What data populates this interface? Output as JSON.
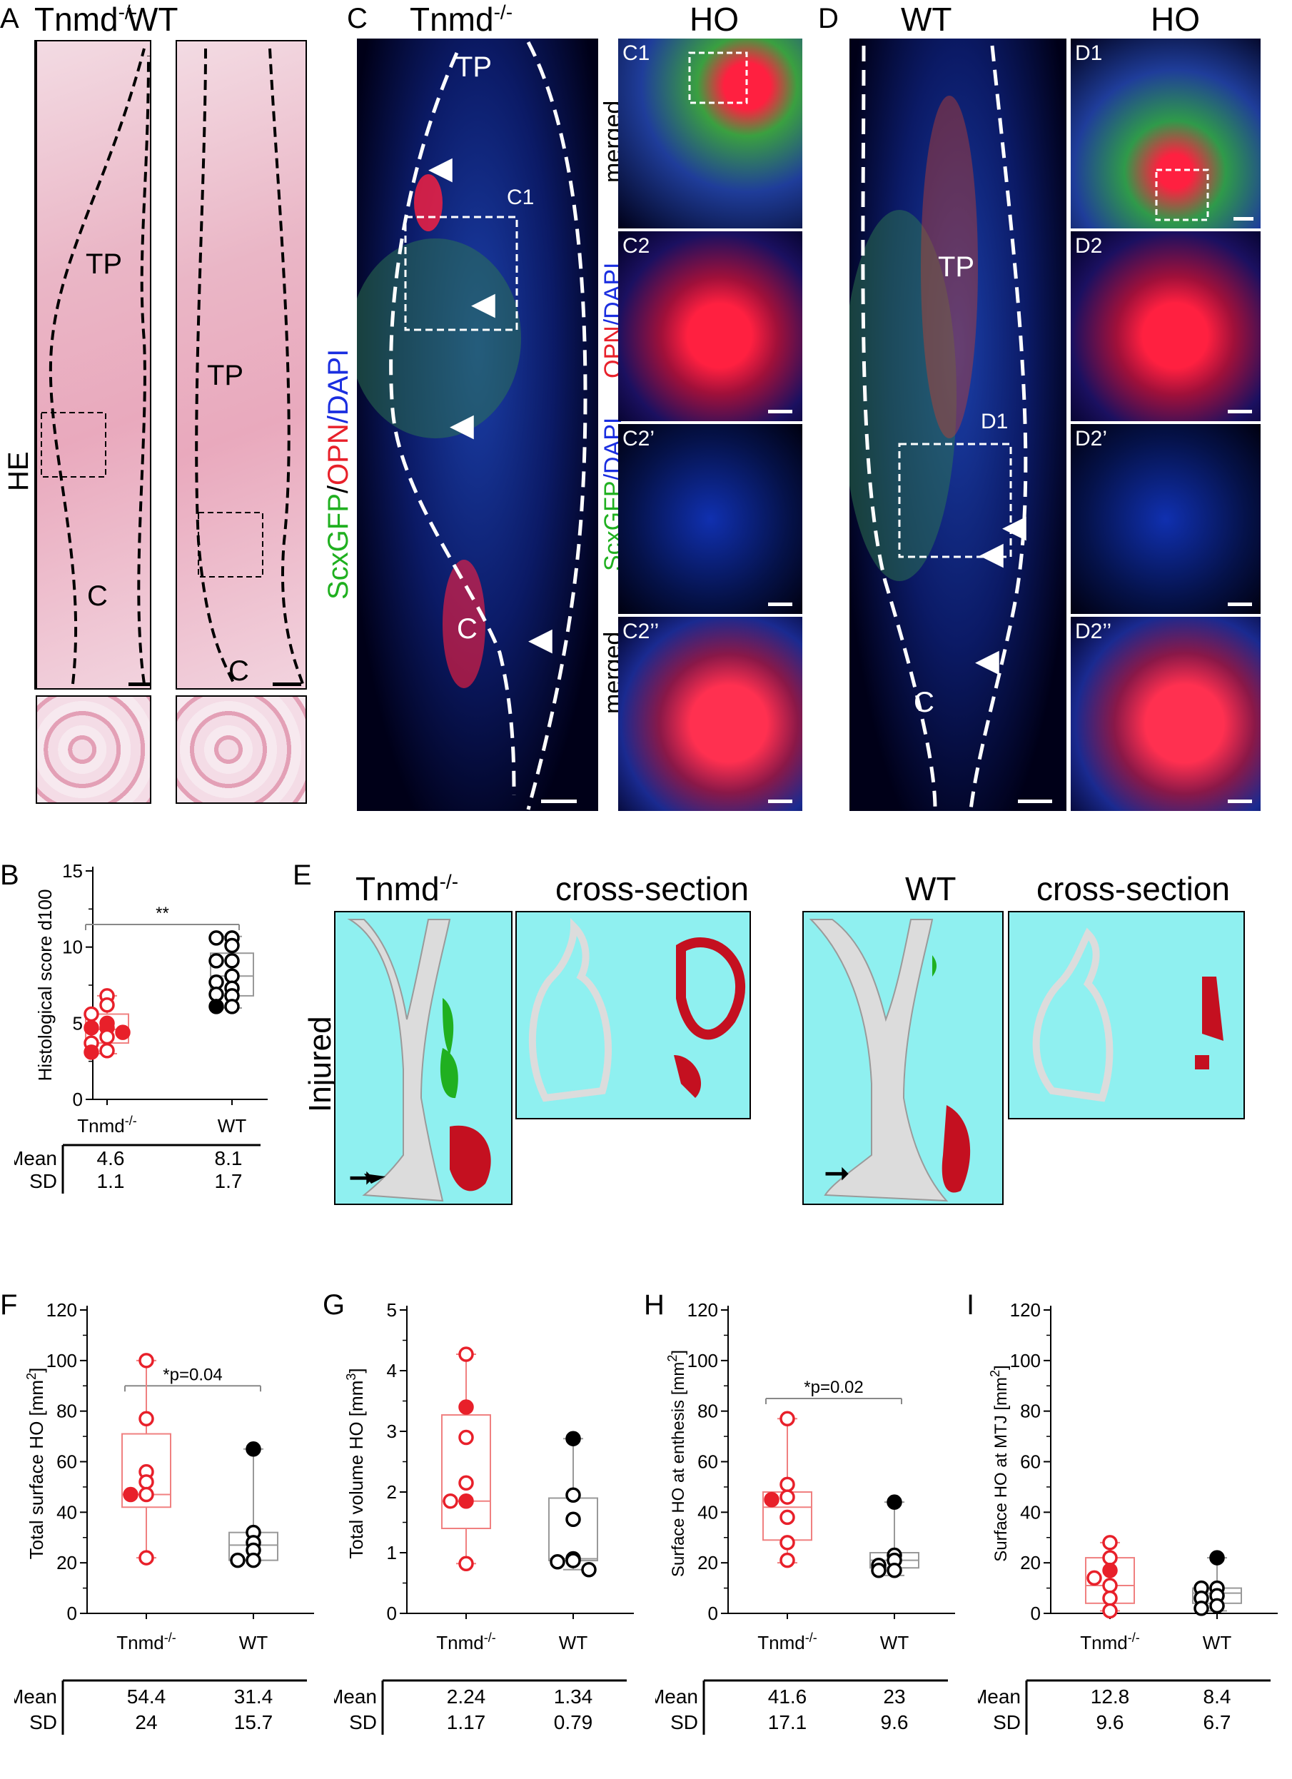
{
  "panel_letters": {
    "a": "A",
    "b": "B",
    "c": "C",
    "d": "D",
    "e": "E",
    "f": "F",
    "g": "G",
    "h": "H",
    "i": "I"
  },
  "panel_a": {
    "title_ko": "Tnmd",
    "title_ko_sup": "-/-",
    "title_wt": "WT",
    "side_label": "HE",
    "tp": "TP",
    "c": "C"
  },
  "panel_c": {
    "title": "Tnmd",
    "title_sup": "-/-",
    "ho": "HO",
    "tp": "TP",
    "c": "C",
    "c1": "C1",
    "sub_c1": "C1",
    "sub_c2": "C2",
    "sub_c2p": "C2’",
    "sub_c2pp": "C2’’",
    "row_merged": "merged",
    "row_opn_a": "OPN",
    "row_opn_b": "/DAPI",
    "row_scx_a": "ScxGFP",
    "row_scx_b": "/DAPI",
    "row_merged2": "merged",
    "stain_a": "ScxGFP",
    "stain_b": "/",
    "stain_c": "OPN",
    "stain_d": "/DAPI"
  },
  "panel_d": {
    "title": "WT",
    "ho": "HO",
    "tp": "TP",
    "c": "C",
    "d1": "D1",
    "sub_d1": "D1",
    "sub_d2": "D2",
    "sub_d2p": "D2’",
    "sub_d2pp": "D2’’"
  },
  "panel_e": {
    "ko": "Tnmd",
    "ko_sup": "-/-",
    "cross1": "cross-section",
    "wt": "WT",
    "cross2": "cross-section",
    "side": "Injured"
  },
  "colors": {
    "ko": "#e8202a",
    "wt": "#000000",
    "ko_box": "#f08080",
    "wt_box": "#999999",
    "ho": "#c41020",
    "bone": "#dcdcdc",
    "green": "#20b020",
    "cyan": "#8ff0f0"
  },
  "chart_data": [
    {
      "id": "B",
      "type": "scatter",
      "ylabel": "Histological  score d100",
      "ylim": [
        0,
        15
      ],
      "yticks": [
        0,
        5,
        10,
        15
      ],
      "categories": [
        "Tnmd-/-",
        "WT"
      ],
      "significance": "**",
      "series": [
        {
          "name": "Tnmd-/-",
          "values": [
            6.8,
            6.2,
            5.6,
            5.0,
            4.7,
            4.7,
            4.4,
            4.1,
            3.7,
            3.2,
            3.1
          ],
          "filled": [
            false,
            false,
            false,
            true,
            true,
            true,
            true,
            false,
            false,
            false,
            true
          ],
          "box": {
            "min": 3.0,
            "q1": 3.7,
            "median": 4.6,
            "q3": 5.6,
            "max": 6.8
          }
        },
        {
          "name": "WT",
          "values": [
            10.6,
            10.6,
            10.1,
            9.1,
            9.1,
            8.1,
            7.7,
            7.3,
            6.9,
            6.8,
            6.1,
            6.1
          ],
          "filled": [
            false,
            false,
            false,
            false,
            false,
            false,
            false,
            false,
            false,
            false,
            false,
            true
          ],
          "box": {
            "min": 6.0,
            "q1": 6.8,
            "median": 8.1,
            "q3": 9.6,
            "max": 10.7
          }
        }
      ],
      "table": {
        "mean_label": "Mean",
        "sd_label": "SD",
        "mean": [
          "4.6",
          "8.1"
        ],
        "sd": [
          "1.1",
          "1.7"
        ]
      },
      "xlabels": [
        "Tnmd",
        "WT"
      ],
      "xsup": [
        "-/-",
        ""
      ]
    },
    {
      "id": "F",
      "type": "scatter",
      "ylabel": "Total surface HO [mm",
      "ylabel_sup": "2",
      "ylabel_end": "]",
      "ylim": [
        0,
        120
      ],
      "yticks": [
        0,
        20,
        40,
        60,
        80,
        100,
        120
      ],
      "categories": [
        "Tnmd-/-",
        "WT"
      ],
      "significance": "*p=0.04",
      "series": [
        {
          "name": "Tnmd-/-",
          "values": [
            100,
            77,
            56,
            52,
            47,
            47,
            22
          ],
          "filled": [
            false,
            false,
            false,
            false,
            false,
            true,
            false
          ],
          "box": {
            "min": 22,
            "q1": 42,
            "median": 47,
            "q3": 71,
            "max": 100
          }
        },
        {
          "name": "WT",
          "values": [
            65,
            32,
            28,
            25,
            21,
            21
          ],
          "filled": [
            true,
            false,
            false,
            false,
            false,
            false
          ],
          "box": {
            "min": 21,
            "q1": 21,
            "median": 27,
            "q3": 32,
            "max": 65
          }
        }
      ],
      "table": {
        "mean_label": "Mean",
        "sd_label": "SD",
        "mean": [
          "54.4",
          "31.4"
        ],
        "sd": [
          "24",
          "15.7"
        ]
      },
      "xlabels": [
        "Tnmd",
        "WT"
      ],
      "xsup": [
        "-/-",
        ""
      ]
    },
    {
      "id": "G",
      "type": "scatter",
      "ylabel": "Total volume HO [mm",
      "ylabel_sup": "3",
      "ylabel_end": "]",
      "ylim": [
        0,
        5
      ],
      "yticks": [
        0,
        1,
        2,
        3,
        4,
        5
      ],
      "categories": [
        "Tnmd-/-",
        "WT"
      ],
      "significance": "",
      "series": [
        {
          "name": "Tnmd-/-",
          "values": [
            4.27,
            3.4,
            2.9,
            2.15,
            1.85,
            1.85,
            0.82
          ],
          "filled": [
            false,
            true,
            false,
            false,
            true,
            false,
            false
          ],
          "box": {
            "min": 0.82,
            "q1": 1.4,
            "median": 1.85,
            "q3": 3.27,
            "max": 4.27
          }
        },
        {
          "name": "WT",
          "values": [
            2.88,
            1.95,
            1.55,
            0.9,
            0.87,
            0.85,
            0.72
          ],
          "filled": [
            true,
            false,
            false,
            false,
            false,
            false,
            false
          ],
          "box": {
            "min": 0.72,
            "q1": 0.87,
            "median": 0.9,
            "q3": 1.9,
            "max": 2.88
          }
        }
      ],
      "table": {
        "mean_label": "Mean",
        "sd_label": "SD",
        "mean": [
          "2.24",
          "1.34"
        ],
        "sd": [
          "1.17",
          "0.79"
        ]
      },
      "xlabels": [
        "Tnmd",
        "WT"
      ],
      "xsup": [
        "-/-",
        ""
      ]
    },
    {
      "id": "H",
      "type": "scatter",
      "ylabel": "Surface HO at enthesis [mm",
      "ylabel_sup": "2",
      "ylabel_end": "]",
      "ylim": [
        0,
        120
      ],
      "yticks": [
        0,
        20,
        40,
        60,
        80,
        100,
        120
      ],
      "categories": [
        "Tnmd-/-",
        "WT"
      ],
      "significance": "*p=0.02",
      "series": [
        {
          "name": "Tnmd-/-",
          "values": [
            77,
            51,
            46,
            45,
            38,
            28,
            21
          ],
          "filled": [
            false,
            false,
            false,
            true,
            false,
            false,
            false
          ],
          "box": {
            "min": 20,
            "q1": 29,
            "median": 42,
            "q3": 48,
            "max": 77
          }
        },
        {
          "name": "WT",
          "values": [
            44,
            23,
            21,
            19,
            17,
            17
          ],
          "filled": [
            true,
            false,
            false,
            false,
            false,
            false
          ],
          "box": {
            "min": 15,
            "q1": 18,
            "median": 21,
            "q3": 24,
            "max": 44
          }
        }
      ],
      "table": {
        "mean_label": "Mean",
        "sd_label": "SD",
        "mean": [
          "41.6",
          "23"
        ],
        "sd": [
          "17.1",
          "9.6"
        ]
      },
      "xlabels": [
        "Tnmd",
        "WT"
      ],
      "xsup": [
        "-/-",
        ""
      ]
    },
    {
      "id": "I",
      "type": "scatter",
      "ylabel": "Surface HO at MTJ [mm",
      "ylabel_sup": "2",
      "ylabel_end": "]",
      "ylim": [
        0,
        120
      ],
      "yticks": [
        0,
        20,
        40,
        60,
        80,
        100,
        120
      ],
      "categories": [
        "Tnmd-/-",
        "WT"
      ],
      "significance": "",
      "series": [
        {
          "name": "Tnmd-/-",
          "values": [
            28,
            22,
            17,
            14,
            11,
            6,
            1
          ],
          "filled": [
            false,
            false,
            true,
            false,
            false,
            false,
            false
          ],
          "box": {
            "min": 1,
            "q1": 4,
            "median": 11,
            "q3": 22,
            "max": 28
          }
        },
        {
          "name": "WT",
          "values": [
            22,
            10,
            10,
            7,
            6,
            3,
            2
          ],
          "filled": [
            true,
            false,
            false,
            false,
            false,
            false,
            false
          ],
          "box": {
            "min": 1,
            "q1": 4,
            "median": 8,
            "q3": 10,
            "max": 22
          }
        }
      ],
      "table": {
        "mean_label": "Mean",
        "sd_label": "SD",
        "mean": [
          "12.8",
          "8.4"
        ],
        "sd": [
          "9.6",
          "6.7"
        ]
      },
      "xlabels": [
        "Tnmd",
        "WT"
      ],
      "xsup": [
        "-/-",
        ""
      ]
    }
  ]
}
